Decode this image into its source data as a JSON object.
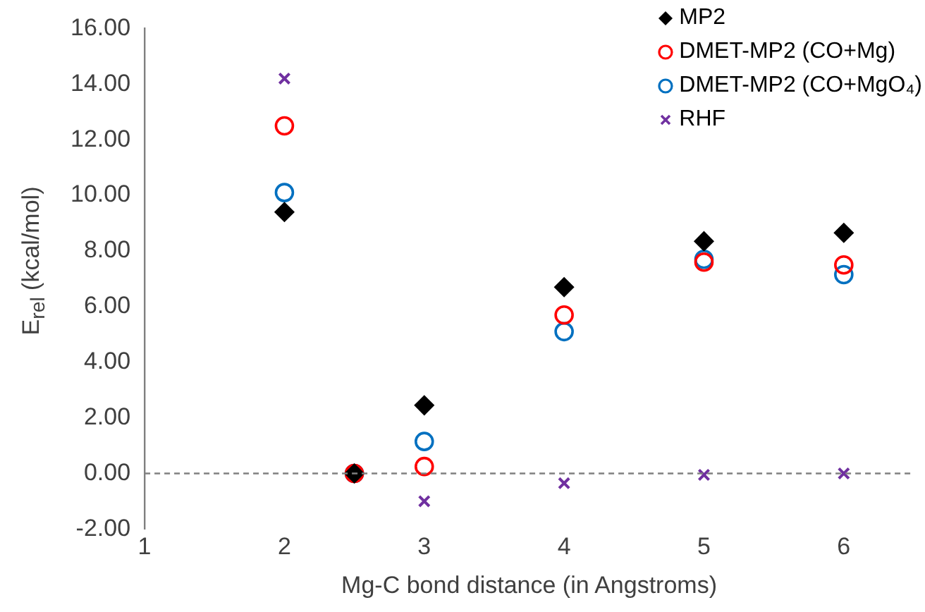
{
  "chart_data": {
    "type": "scatter",
    "xlabel": "Mg-C bond distance (in Angstroms)",
    "ylabel": "E$_{rel}$ (kcal/mol)",
    "x": [
      2,
      2.5,
      3,
      4,
      5,
      6
    ],
    "series": [
      {
        "name": "MP2",
        "color": "#000000",
        "marker": "diamond",
        "values": [
          9.4,
          0,
          2.45,
          6.7,
          8.35,
          8.65
        ]
      },
      {
        "name": "DMET-MP2 (CO+Mg)",
        "color": "#ff0000",
        "marker": "circle",
        "values": [
          12.5,
          0,
          0.25,
          5.7,
          7.6,
          7.5
        ]
      },
      {
        "name": "DMET-MP2 (CO+MgO₄)",
        "color": "#0070c0",
        "marker": "circle",
        "values": [
          10.1,
          0,
          1.15,
          5.1,
          7.7,
          7.15
        ]
      },
      {
        "name": "RHF",
        "color": "#7030a0",
        "marker": "cross",
        "values": [
          14.2,
          0,
          -1.0,
          -0.35,
          -0.05,
          0.0
        ]
      }
    ],
    "xlim": [
      1,
      6.5
    ],
    "xticks": [
      1,
      2,
      3,
      4,
      5,
      6
    ],
    "ylim": [
      -2,
      16
    ],
    "yticks": [
      {
        "value": -2,
        "label": "-2.00"
      },
      {
        "value": 0,
        "label": "0.00"
      },
      {
        "value": 2,
        "label": "2.00"
      },
      {
        "value": 4,
        "label": "4.00"
      },
      {
        "value": 6,
        "label": "6.00"
      },
      {
        "value": 8,
        "label": "8.00"
      },
      {
        "value": 10,
        "label": "10.00"
      },
      {
        "value": 12,
        "label": "12.00"
      },
      {
        "value": 14,
        "label": "14.00"
      },
      {
        "value": 16,
        "label": "16.00"
      }
    ],
    "ref_lines": [
      {
        "axis": "y",
        "value": 0,
        "color": "#808080",
        "line_style": "dashed"
      }
    ],
    "grid": false,
    "legend": "top right"
  }
}
